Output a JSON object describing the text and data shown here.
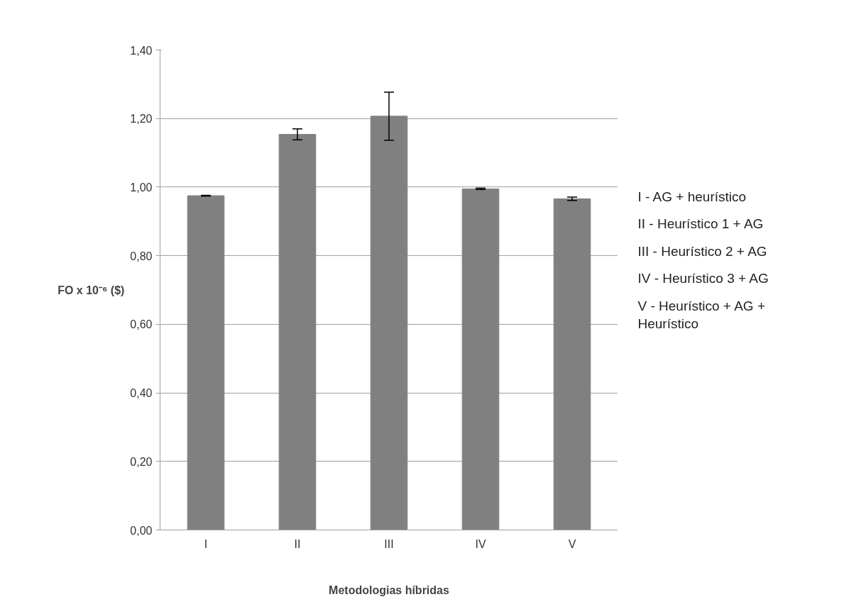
{
  "chart_data": {
    "type": "bar",
    "xlabel": "Metodologias híbridas",
    "ylabel": "FO x 10⁻⁶ ($)",
    "categories": [
      "I",
      "II",
      "III",
      "IV",
      "V"
    ],
    "values": [
      0.975,
      1.154,
      1.207,
      0.995,
      0.966
    ],
    "errors": [
      0.001,
      0.016,
      0.07,
      0.002,
      0.005
    ],
    "color": "#808080",
    "ylim": [
      0,
      1.4
    ],
    "yticks": [
      {
        "value": 0,
        "label": "0,00"
      },
      {
        "value": 0.2,
        "label": "0,20"
      },
      {
        "value": 0.4,
        "label": "0,40"
      },
      {
        "value": 0.6,
        "label": "0,60"
      },
      {
        "value": 0.8,
        "label": "0,80"
      },
      {
        "value": 1.0,
        "label": "1,00"
      },
      {
        "value": 1.2,
        "label": "1,20"
      },
      {
        "value": 1.4,
        "label": "1,40"
      }
    ],
    "grid": "y",
    "annotations": [
      "I - AG + heurístico",
      "II - Heurístico 1 + AG",
      "III - Heurístico 2 + AG",
      "IV - Heurístico 3 + AG",
      "V - Heurístico + AG +\nHeurístico"
    ]
  }
}
